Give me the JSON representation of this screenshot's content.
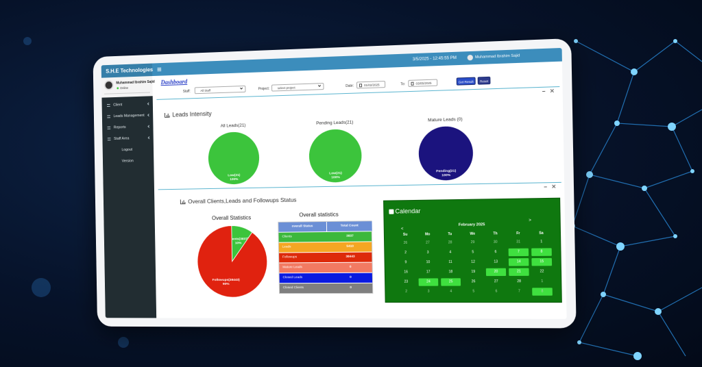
{
  "header": {
    "brand": "S.H.E Technologies",
    "datetime": "3/5/2025 - 12:45:55 PM",
    "user": "Muhammad Ibrahim Sajid"
  },
  "sidebar": {
    "user": "Muhammad Ibrahim Sajid",
    "status": "Online",
    "menu": [
      "Client",
      "Leads Management",
      "Reports",
      "Staff Area",
      "Logout",
      "Version"
    ]
  },
  "toolbar": {
    "title": "Dashboard",
    "staff_label": "Staff:",
    "staff_value": "All Staff",
    "project_label": "Project:",
    "project_value": "select project",
    "date_label": "Date:",
    "date_from": "01/02/2025",
    "to_label": "To:",
    "date_to": "03/05/2025",
    "buttons": [
      "Get Result",
      "Reset"
    ]
  },
  "leads_intensity": {
    "title": "Leads Intensity",
    "pies": [
      {
        "title": "All Leads(21)",
        "slices": [
          {
            "label": "Low(21)",
            "value": 100,
            "value_label": "100%",
            "color": "#3cc43c"
          }
        ]
      },
      {
        "title": "Pending Leads(21)",
        "slices": [
          {
            "label": "Low(21)",
            "value": 100,
            "value_label": "100%",
            "color": "#3cc43c"
          }
        ]
      },
      {
        "title": "Mature Leads (0)",
        "slices": [
          {
            "label": "Pending(21)",
            "value": 100,
            "value_label": "100%",
            "color": "#1b137e"
          }
        ]
      }
    ]
  },
  "overall": {
    "title": "Overall Clients,Leads and Followups Status",
    "pie": {
      "title": "Overall Statistics",
      "slices": [
        {
          "label": "Clients(3837)",
          "value": 10,
          "value_label": "10%",
          "color": "#3cc43c"
        },
        {
          "label": "Followups(38443)",
          "value": 90,
          "value_label": "90%",
          "color": "#e0220f"
        }
      ]
    },
    "table": {
      "title": "Overall statistics",
      "columns": [
        "overall Status",
        "Total Count"
      ],
      "rows": [
        {
          "status": "Clients",
          "count": 3837,
          "color": "#3cb83c"
        },
        {
          "status": "Leads",
          "count": 5410,
          "color": "#f5a623"
        },
        {
          "status": "Followups",
          "count": 38443,
          "color": "#dd2a0a"
        },
        {
          "status": "Mature Leads",
          "count": 0,
          "color": "#f27a62"
        },
        {
          "status": "Closed Leads",
          "count": 0,
          "color": "#0a1ae0"
        },
        {
          "status": "Closed Clients",
          "count": 0,
          "color": "#7f7f7f"
        }
      ]
    }
  },
  "calendar": {
    "title": "Calendar",
    "month": "February 2025",
    "prev": "<",
    "next": ">",
    "weekdays": [
      "Su",
      "Mo",
      "Tu",
      "We",
      "Th",
      "Fr",
      "Sa"
    ],
    "weeks": [
      [
        26,
        27,
        28,
        29,
        30,
        31,
        1
      ],
      [
        2,
        3,
        4,
        5,
        6,
        7,
        8
      ],
      [
        9,
        10,
        11,
        12,
        13,
        14,
        15
      ],
      [
        16,
        17,
        18,
        19,
        20,
        21,
        22
      ],
      [
        23,
        24,
        25,
        26,
        27,
        28,
        1
      ],
      [
        2,
        3,
        4,
        5,
        6,
        7,
        8
      ]
    ]
  }
}
